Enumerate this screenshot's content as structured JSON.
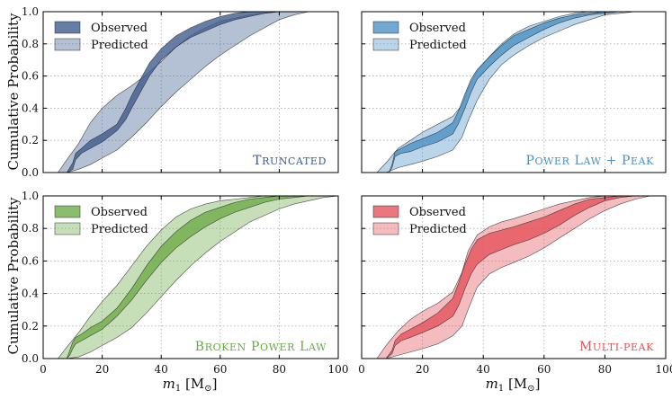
{
  "chart_data": {
    "type": "area",
    "shared": {
      "xlabel": "m1 [M⊙]",
      "xlabel_main": "m",
      "xlabel_sub": "1",
      "xlabel_rest": " [M",
      "xlabel_sun": "⊙",
      "xlabel_close": "]",
      "ylabel": "Cumulative Probability",
      "xlim": [
        0,
        100
      ],
      "ylim": [
        0,
        1
      ],
      "xticks": [
        0,
        20,
        40,
        60,
        80,
        100
      ],
      "yticks": [
        0.0,
        0.2,
        0.4,
        0.6,
        0.8,
        1.0
      ],
      "xtick_labels": [
        "0",
        "20",
        "40",
        "60",
        "80",
        "100"
      ],
      "ytick_labels": [
        "0.0",
        "0.2",
        "0.4",
        "0.6",
        "0.8",
        "1.0"
      ],
      "legend_labels": [
        "Observed",
        "Predicted"
      ],
      "legend_placement": "top-left",
      "grid": true
    },
    "panels": [
      {
        "title": "Truncated",
        "color": "#3b5a8c",
        "series": [
          {
            "name": "Predicted",
            "x": [
              5,
              8,
              12,
              16,
              20,
              25,
              30,
              35,
              40,
              45,
              50,
              55,
              60,
              65,
              70,
              75,
              80,
              85,
              90
            ],
            "lower": [
              0,
              0,
              0.02,
              0.05,
              0.09,
              0.14,
              0.22,
              0.31,
              0.41,
              0.5,
              0.58,
              0.66,
              0.73,
              0.79,
              0.85,
              0.9,
              0.95,
              0.98,
              1.0
            ],
            "upper": [
              0,
              0.08,
              0.18,
              0.31,
              0.4,
              0.48,
              0.54,
              0.61,
              0.69,
              0.78,
              0.85,
              0.9,
              0.94,
              0.96,
              0.98,
              0.99,
              1.0,
              1.0,
              1.0
            ]
          },
          {
            "name": "Observed",
            "x": [
              8,
              10,
              11,
              13,
              16,
              20,
              25,
              28,
              30,
              33,
              36,
              40,
              45,
              50,
              55,
              60,
              65,
              70,
              75,
              80,
              85
            ],
            "lower": [
              0,
              0.02,
              0.08,
              0.12,
              0.15,
              0.19,
              0.26,
              0.33,
              0.4,
              0.5,
              0.6,
              0.7,
              0.78,
              0.84,
              0.88,
              0.92,
              0.95,
              0.97,
              0.99,
              1.0,
              1.0
            ],
            "upper": [
              0,
              0.06,
              0.12,
              0.15,
              0.2,
              0.24,
              0.3,
              0.4,
              0.48,
              0.58,
              0.68,
              0.77,
              0.85,
              0.9,
              0.94,
              0.97,
              0.99,
              1.0,
              1.0,
              1.0,
              1.0
            ]
          }
        ]
      },
      {
        "title": "Power Law + Peak",
        "color": "#4a90c4",
        "series": [
          {
            "name": "Predicted",
            "x": [
              5,
              8,
              12,
              16,
              20,
              25,
              30,
              33,
              35,
              38,
              42,
              46,
              50,
              55,
              60,
              65,
              70,
              75,
              80,
              85,
              90
            ],
            "lower": [
              0,
              0,
              0.03,
              0.05,
              0.07,
              0.1,
              0.14,
              0.22,
              0.32,
              0.45,
              0.58,
              0.67,
              0.73,
              0.79,
              0.84,
              0.88,
              0.92,
              0.95,
              0.98,
              0.99,
              1.0
            ],
            "upper": [
              0,
              0.06,
              0.15,
              0.2,
              0.25,
              0.3,
              0.35,
              0.42,
              0.52,
              0.63,
              0.72,
              0.8,
              0.86,
              0.91,
              0.94,
              0.97,
              0.99,
              1.0,
              1.0,
              1.0,
              1.0
            ]
          },
          {
            "name": "Observed",
            "x": [
              9,
              10,
              11,
              13,
              16,
              20,
              25,
              30,
              32,
              34,
              36,
              38,
              42,
              46,
              50,
              55,
              60,
              65,
              70,
              75,
              80,
              85,
              90
            ],
            "lower": [
              0,
              0.03,
              0.1,
              0.12,
              0.13,
              0.16,
              0.19,
              0.24,
              0.31,
              0.4,
              0.5,
              0.58,
              0.66,
              0.73,
              0.79,
              0.84,
              0.89,
              0.93,
              0.96,
              0.98,
              0.99,
              1.0,
              1.0
            ],
            "upper": [
              0,
              0.05,
              0.13,
              0.15,
              0.18,
              0.21,
              0.25,
              0.31,
              0.39,
              0.49,
              0.58,
              0.64,
              0.72,
              0.79,
              0.85,
              0.89,
              0.93,
              0.96,
              0.98,
              0.99,
              1.0,
              1.0,
              1.0
            ]
          }
        ]
      },
      {
        "title": "Broken Power Law",
        "color": "#6aaa45",
        "series": [
          {
            "name": "Predicted",
            "x": [
              5,
              8,
              12,
              16,
              20,
              25,
              30,
              35,
              40,
              45,
              50,
              55,
              60,
              65,
              70,
              75,
              80,
              85,
              90,
              95,
              100
            ],
            "lower": [
              0,
              0,
              0.01,
              0.04,
              0.08,
              0.13,
              0.19,
              0.28,
              0.38,
              0.48,
              0.57,
              0.65,
              0.72,
              0.78,
              0.84,
              0.88,
              0.92,
              0.95,
              0.97,
              0.99,
              1.0
            ],
            "upper": [
              0,
              0.07,
              0.16,
              0.26,
              0.35,
              0.45,
              0.57,
              0.69,
              0.79,
              0.87,
              0.92,
              0.95,
              0.97,
              0.98,
              0.99,
              1.0,
              1.0,
              1.0,
              1.0,
              1.0,
              1.0
            ]
          },
          {
            "name": "Observed",
            "x": [
              8,
              9,
              10,
              11,
              13,
              16,
              20,
              25,
              30,
              35,
              40,
              45,
              50,
              55,
              60,
              65,
              70,
              75,
              80,
              85,
              90
            ],
            "lower": [
              0,
              0.02,
              0.06,
              0.09,
              0.11,
              0.14,
              0.18,
              0.26,
              0.36,
              0.48,
              0.59,
              0.68,
              0.75,
              0.81,
              0.86,
              0.9,
              0.93,
              0.96,
              0.98,
              0.99,
              1.0
            ],
            "upper": [
              0,
              0.05,
              0.1,
              0.13,
              0.15,
              0.19,
              0.23,
              0.31,
              0.43,
              0.57,
              0.69,
              0.78,
              0.85,
              0.9,
              0.93,
              0.96,
              0.98,
              0.99,
              1.0,
              1.0,
              1.0
            ]
          }
        ]
      },
      {
        "title": "Multi-Peak",
        "color": "#e65058",
        "series": [
          {
            "name": "Predicted",
            "x": [
              5,
              8,
              12,
              16,
              20,
              25,
              30,
              33,
              35,
              38,
              42,
              46,
              50,
              55,
              60,
              65,
              70,
              75,
              80,
              85,
              90,
              95
            ],
            "lower": [
              0,
              0,
              0.02,
              0.04,
              0.06,
              0.09,
              0.14,
              0.2,
              0.3,
              0.44,
              0.52,
              0.56,
              0.59,
              0.63,
              0.68,
              0.74,
              0.8,
              0.86,
              0.91,
              0.95,
              0.98,
              1.0
            ],
            "upper": [
              0,
              0.08,
              0.17,
              0.24,
              0.29,
              0.34,
              0.41,
              0.53,
              0.66,
              0.76,
              0.81,
              0.84,
              0.86,
              0.89,
              0.92,
              0.95,
              0.97,
              0.99,
              1.0,
              1.0,
              1.0,
              1.0
            ]
          },
          {
            "name": "Observed",
            "x": [
              8,
              10,
              11,
              13,
              16,
              20,
              25,
              30,
              32,
              34,
              36,
              38,
              42,
              46,
              50,
              55,
              60,
              65,
              70,
              75,
              80,
              85,
              90
            ],
            "lower": [
              0,
              0.03,
              0.08,
              0.11,
              0.13,
              0.16,
              0.2,
              0.26,
              0.33,
              0.43,
              0.52,
              0.58,
              0.64,
              0.67,
              0.7,
              0.73,
              0.77,
              0.82,
              0.88,
              0.93,
              0.97,
              0.99,
              1.0
            ],
            "upper": [
              0,
              0.05,
              0.11,
              0.15,
              0.18,
              0.22,
              0.28,
              0.37,
              0.47,
              0.58,
              0.67,
              0.73,
              0.77,
              0.79,
              0.81,
              0.84,
              0.87,
              0.91,
              0.95,
              0.98,
              0.99,
              1.0,
              1.0
            ]
          }
        ]
      }
    ]
  }
}
